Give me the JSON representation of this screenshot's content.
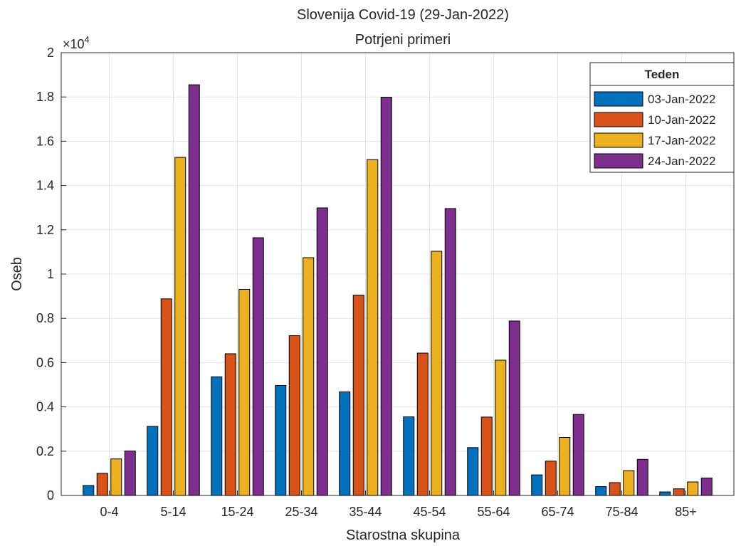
{
  "chart_data": {
    "type": "bar",
    "title": "Slovenija Covid-19 (29-Jan-2022)",
    "subtitle": "Potrjeni primeri",
    "xlabel": "Starostna skupina",
    "ylabel": "Oseb",
    "y_exponent_label": "×10",
    "y_exponent": "4",
    "ylim": [
      0,
      20000
    ],
    "yticks": [
      0,
      2000,
      4000,
      6000,
      8000,
      10000,
      12000,
      14000,
      16000,
      18000,
      20000
    ],
    "ytick_labels": [
      "0",
      "0.2",
      "0.4",
      "0.6",
      "0.8",
      "1",
      "1.2",
      "1.4",
      "1.6",
      "1.8",
      "2"
    ],
    "grid": true,
    "legend_title": "Teden",
    "legend_position": "top-right",
    "categories": [
      "0-4",
      "5-14",
      "15-24",
      "25-34",
      "35-44",
      "45-54",
      "55-64",
      "65-74",
      "75-84",
      "85+"
    ],
    "series": [
      {
        "name": "03-Jan-2022",
        "color": "#0072BD",
        "values": [
          450,
          3120,
          5360,
          4970,
          4680,
          3550,
          2160,
          930,
          400,
          160
        ]
      },
      {
        "name": "10-Jan-2022",
        "color": "#D95319",
        "values": [
          1000,
          8880,
          6400,
          7220,
          9050,
          6430,
          3540,
          1550,
          580,
          300
        ]
      },
      {
        "name": "17-Jan-2022",
        "color": "#EDB120",
        "values": [
          1650,
          15270,
          9310,
          10740,
          15170,
          11030,
          6110,
          2620,
          1120,
          610
        ]
      },
      {
        "name": "24-Jan-2022",
        "color": "#7E2F8E",
        "values": [
          2010,
          18550,
          11640,
          12990,
          17990,
          12960,
          7880,
          3660,
          1630,
          790
        ]
      }
    ]
  }
}
